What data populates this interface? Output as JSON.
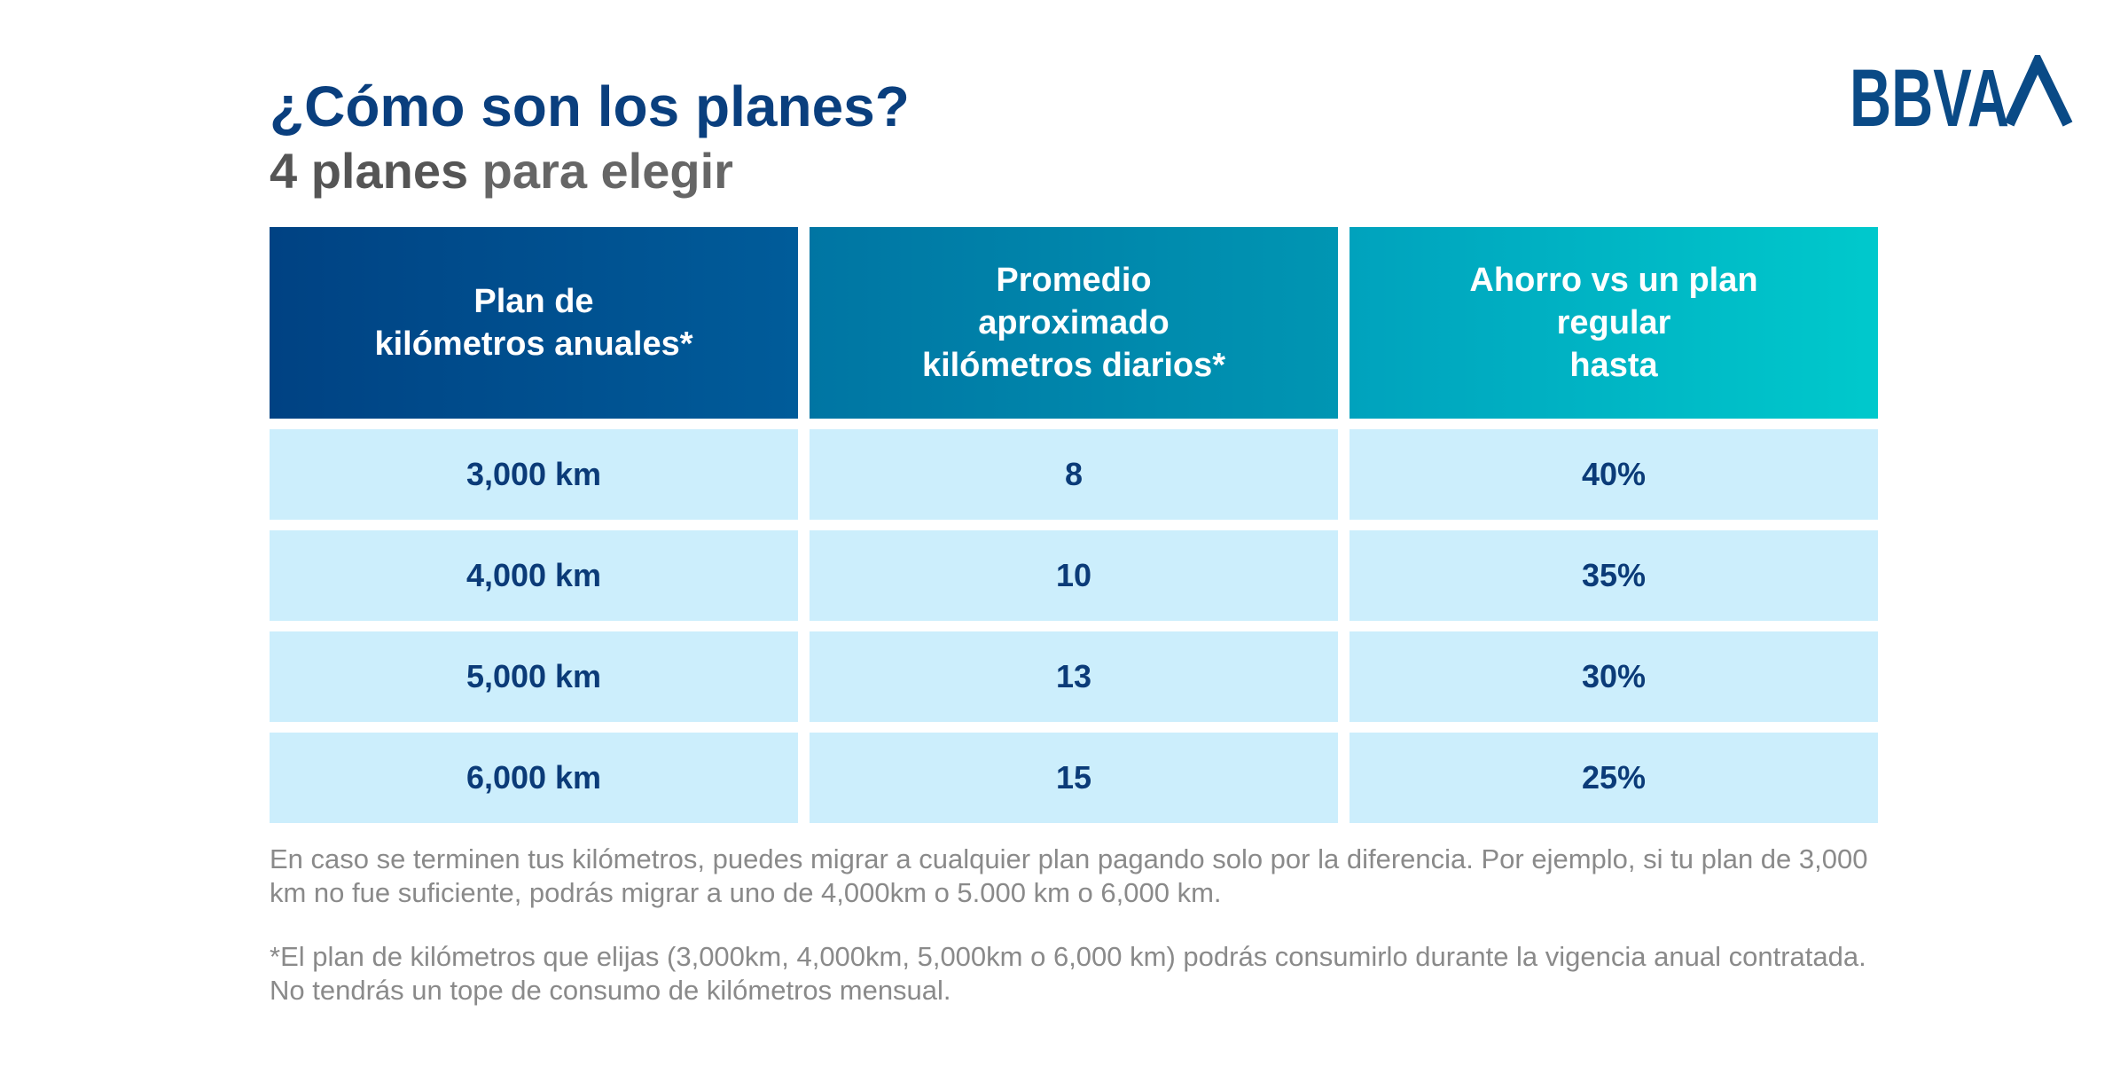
{
  "header": {
    "title": "¿Cómo son los planes?",
    "subtitle_bold": "4 planes",
    "subtitle_rest": "para elegir"
  },
  "brand": {
    "logo_text": "BBVA",
    "color": "#0a4a86"
  },
  "table": {
    "headers": [
      "Plan de\nkilómetros anuales*",
      "Promedio\naproximado\nkilómetros diarios*",
      "Ahorro vs un plan\nregular\nhasta"
    ],
    "rows": [
      [
        "3,000 km",
        "8",
        "40%"
      ],
      [
        "4,000 km",
        "10",
        "35%"
      ],
      [
        "5,000 km",
        "13",
        "30%"
      ],
      [
        "6,000 km",
        "15",
        "25%"
      ]
    ]
  },
  "notes": {
    "note1": "En caso se terminen tus kilómetros, puedes migrar a cualquier plan pagando solo por la diferencia. Por ejemplo, si tu plan de 3,000 km no fue suficiente, podrás migrar a uno de 4,000km o 5.000 km o 6,000 km.",
    "note2": "*El plan de kilómetros que elijas (3,000km, 4,000km, 5,000km o 6,000 km) podrás consumirlo durante la vigencia anual contratada. No tendrás un tope de consumo de kilómetros mensual."
  }
}
